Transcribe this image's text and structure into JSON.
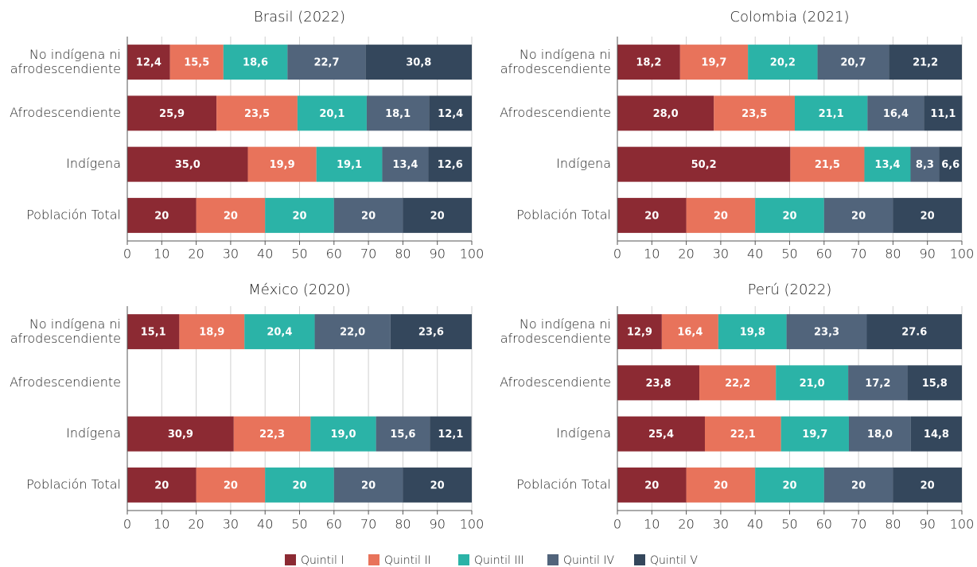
{
  "legend": [
    {
      "name": "Quintil I",
      "color": "#8c2a33"
    },
    {
      "name": "Quintil II",
      "color": "#e8735b"
    },
    {
      "name": "Quintil III",
      "color": "#2bb3a7"
    },
    {
      "name": "Quintil IV",
      "color": "#51647b"
    },
    {
      "name": "Quintil V",
      "color": "#34475c"
    }
  ],
  "chart_data": [
    {
      "type": "bar",
      "stacked": true,
      "grid": true,
      "title": "Brasil (2022)",
      "categories": [
        "No indígena ni afrodescendiente",
        "Afrodescendiente",
        "Indígena",
        "Población Total"
      ],
      "xlim": [
        0,
        100
      ],
      "xticks": [
        0,
        10,
        20,
        30,
        40,
        50,
        60,
        70,
        80,
        90,
        100
      ],
      "series": [
        {
          "values": [
            12.4,
            25.9,
            35.0,
            20
          ],
          "value_labels": [
            "12,4",
            "25,9",
            "35,0",
            "20"
          ]
        },
        {
          "values": [
            15.5,
            23.5,
            19.9,
            20
          ],
          "value_labels": [
            "15,5",
            "23,5",
            "19,9",
            "20"
          ]
        },
        {
          "values": [
            18.6,
            20.1,
            19.1,
            20
          ],
          "value_labels": [
            "18,6",
            "20,1",
            "19,1",
            "20"
          ]
        },
        {
          "values": [
            22.7,
            18.1,
            13.4,
            20
          ],
          "value_labels": [
            "22,7",
            "18,1",
            "13,4",
            "20"
          ]
        },
        {
          "values": [
            30.8,
            12.4,
            12.6,
            20
          ],
          "value_labels": [
            "30,8",
            "12,4",
            "12,6",
            "20"
          ]
        }
      ]
    },
    {
      "type": "bar",
      "stacked": true,
      "grid": true,
      "title": "Colombia (2021)",
      "categories": [
        "No indígena ni afrodescendiente",
        "Afrodescendiente",
        "Indígena",
        "Población Total"
      ],
      "xlim": [
        0,
        100
      ],
      "xticks": [
        0,
        10,
        20,
        30,
        40,
        50,
        60,
        70,
        80,
        90,
        100
      ],
      "series": [
        {
          "values": [
            18.2,
            28.0,
            50.2,
            20
          ],
          "value_labels": [
            "18,2",
            "28,0",
            "50,2",
            "20"
          ]
        },
        {
          "values": [
            19.7,
            23.5,
            21.5,
            20
          ],
          "value_labels": [
            "19,7",
            "23,5",
            "21,5",
            "20"
          ]
        },
        {
          "values": [
            20.2,
            21.1,
            13.4,
            20
          ],
          "value_labels": [
            "20,2",
            "21,1",
            "13,4",
            "20"
          ]
        },
        {
          "values": [
            20.7,
            16.4,
            8.3,
            20
          ],
          "value_labels": [
            "20,7",
            "16,4",
            "8,3",
            "20"
          ]
        },
        {
          "values": [
            21.2,
            11.1,
            6.6,
            20
          ],
          "value_labels": [
            "21,2",
            "11,1",
            "6,6",
            "20"
          ]
        }
      ]
    },
    {
      "type": "bar",
      "stacked": true,
      "grid": true,
      "title": "México (2020)",
      "categories": [
        "No indígena ni afrodescendiente",
        "Afrodescendiente",
        "Indígena",
        "Población Total"
      ],
      "xlim": [
        0,
        100
      ],
      "xticks": [
        0,
        10,
        20,
        30,
        40,
        50,
        60,
        70,
        80,
        90,
        100
      ],
      "series": [
        {
          "values": [
            15.1,
            null,
            30.9,
            20
          ],
          "value_labels": [
            "15,1",
            null,
            "30,9",
            "20"
          ]
        },
        {
          "values": [
            18.9,
            null,
            22.3,
            20
          ],
          "value_labels": [
            "18,9",
            null,
            "22,3",
            "20"
          ]
        },
        {
          "values": [
            20.4,
            null,
            19.0,
            20
          ],
          "value_labels": [
            "20,4",
            null,
            "19,0",
            "20"
          ]
        },
        {
          "values": [
            22.0,
            null,
            15.6,
            20
          ],
          "value_labels": [
            "22,0",
            null,
            "15,6",
            "20"
          ]
        },
        {
          "values": [
            23.6,
            null,
            12.1,
            20
          ],
          "value_labels": [
            "23,6",
            null,
            "12,1",
            "20"
          ]
        }
      ]
    },
    {
      "type": "bar",
      "stacked": true,
      "grid": true,
      "title": "Perú (2022)",
      "categories": [
        "No indígena ni afrodescendiente",
        "Afrodescendiente",
        "Indígena",
        "Población Total"
      ],
      "xlim": [
        0,
        100
      ],
      "xticks": [
        0,
        10,
        20,
        30,
        40,
        50,
        60,
        70,
        80,
        90,
        100
      ],
      "series": [
        {
          "values": [
            12.9,
            23.8,
            25.4,
            20
          ],
          "value_labels": [
            "12,9",
            "23,8",
            "25,4",
            "20"
          ]
        },
        {
          "values": [
            16.4,
            22.2,
            22.1,
            20
          ],
          "value_labels": [
            "16,4",
            "22,2",
            "22,1",
            "20"
          ]
        },
        {
          "values": [
            19.8,
            21.0,
            19.7,
            20
          ],
          "value_labels": [
            "19,8",
            "21,0",
            "19,7",
            "20"
          ]
        },
        {
          "values": [
            23.3,
            17.2,
            18.0,
            20
          ],
          "value_labels": [
            "23,3",
            "17,2",
            "18,0",
            "20"
          ]
        },
        {
          "values": [
            27.6,
            15.8,
            14.8,
            20
          ],
          "value_labels": [
            "27.6",
            "15,8",
            "14,8",
            "20"
          ]
        }
      ]
    }
  ]
}
